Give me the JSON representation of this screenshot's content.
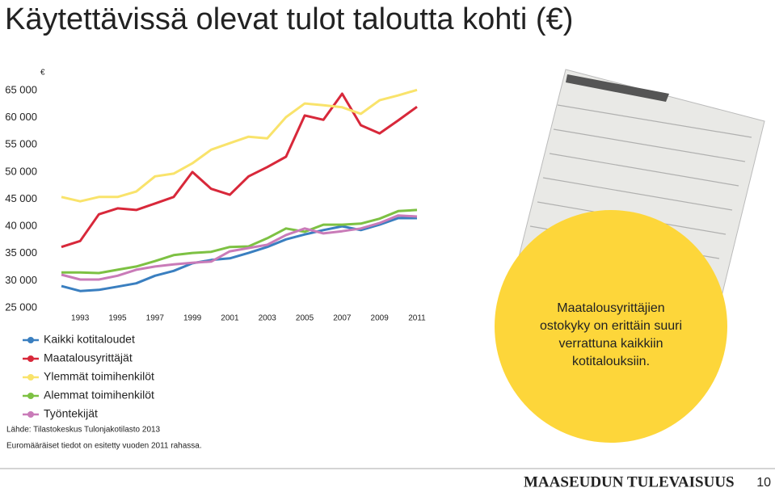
{
  "chart_data": {
    "type": "line",
    "title": "Käytettävissä olevat tulot taloutta kohti (€)",
    "ylabel": "€",
    "x": [
      1992,
      1993,
      1994,
      1995,
      1996,
      1997,
      1998,
      1999,
      2000,
      2001,
      2002,
      2003,
      2004,
      2005,
      2006,
      2007,
      2008,
      2009,
      2010,
      2011
    ],
    "xlim": [
      1992,
      2011
    ],
    "xticks": [
      1993,
      1995,
      1997,
      1999,
      2001,
      2003,
      2005,
      2007,
      2009,
      2011
    ],
    "ylim": [
      25000,
      65000
    ],
    "yticks": [
      {
        "value": 25000,
        "label": "25 000"
      },
      {
        "value": 30000,
        "label": "30 000"
      },
      {
        "value": 35000,
        "label": "35 000"
      },
      {
        "value": 40000,
        "label": "40 000"
      },
      {
        "value": 45000,
        "label": "45 000"
      },
      {
        "value": 50000,
        "label": "50 000"
      },
      {
        "value": 55000,
        "label": "55 000"
      },
      {
        "value": 60000,
        "label": "60 000"
      },
      {
        "value": 65000,
        "label": "65 000"
      }
    ],
    "series": [
      {
        "name": "Kaikki kotitaloudet",
        "color": "#3a7fc0",
        "values": [
          29000,
          28100,
          28300,
          28900,
          29500,
          30900,
          31800,
          33200,
          33800,
          34100,
          35100,
          36200,
          37600,
          38500,
          39300,
          40000,
          39300,
          40300,
          41500,
          41500
        ]
      },
      {
        "name": "Maatalousyrittäjät",
        "color": "#d8283a",
        "values": [
          36200,
          37300,
          42200,
          43300,
          43000,
          44200,
          45400,
          50000,
          46900,
          45800,
          49200,
          50900,
          52800,
          60400,
          59600,
          64400,
          58600,
          57100,
          59500,
          62000
        ]
      },
      {
        "name": "Ylemmät toimihenkilöt",
        "color": "#f9e36b",
        "values": [
          45400,
          44600,
          45400,
          45400,
          46400,
          49200,
          49700,
          51600,
          54100,
          55300,
          56500,
          56200,
          60100,
          62600,
          62300,
          61900,
          60700,
          63200,
          64100,
          65100
        ]
      },
      {
        "name": "Alemmat toimihenkilöt",
        "color": "#7dc143",
        "values": [
          31500,
          31500,
          31400,
          32000,
          32600,
          33600,
          34700,
          35100,
          35300,
          36200,
          36300,
          37800,
          39600,
          39000,
          40300,
          40300,
          40500,
          41400,
          42800,
          43000
        ]
      },
      {
        "name": "Työntekijät",
        "color": "#c97bb8",
        "values": [
          31100,
          30200,
          30200,
          30900,
          32000,
          32600,
          33000,
          33300,
          33500,
          35400,
          36000,
          36600,
          38400,
          39600,
          38700,
          39100,
          39600,
          40600,
          42000,
          41800
        ]
      }
    ]
  },
  "source": "Lähde: Tilastokeskus Tulonjakotilasto 2013",
  "note": "Euromääräiset tiedot on esitetty vuoden 2011 rahassa.",
  "callout": [
    "Maatalousyrittäjien",
    "ostokyky on erittäin suuri",
    "verrattuna kaikkiin",
    "kotitalouksiin."
  ],
  "footer": {
    "brand": "MAASEUDUN TULEVAISUUS",
    "page": "10"
  }
}
